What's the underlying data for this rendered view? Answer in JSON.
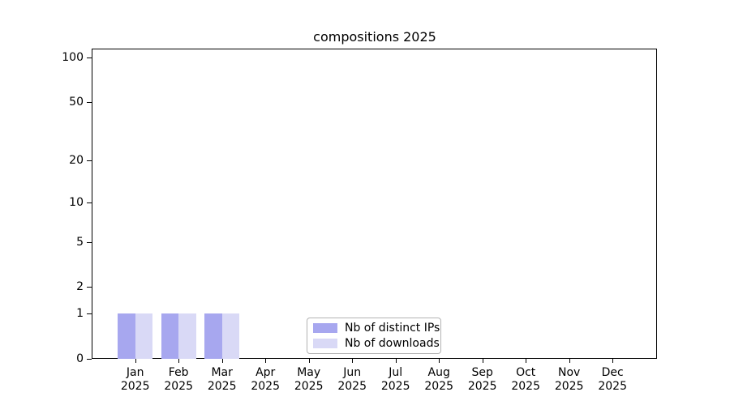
{
  "chart_data": {
    "type": "bar",
    "title": "compositions 2025",
    "categories": [
      "Jan 2025",
      "Feb 2025",
      "Mar 2025",
      "Apr 2025",
      "May 2025",
      "Jun 2025",
      "Jul 2025",
      "Aug 2025",
      "Sep 2025",
      "Oct 2025",
      "Nov 2025",
      "Dec 2025"
    ],
    "series": [
      {
        "name": "Nb of distinct IPs",
        "color": "#a7a7ef",
        "values": [
          1,
          1,
          1,
          0,
          0,
          0,
          0,
          0,
          0,
          0,
          0,
          0
        ]
      },
      {
        "name": "Nb of downloads",
        "color": "#d9d9f6",
        "values": [
          1,
          1,
          1,
          0,
          0,
          0,
          0,
          0,
          0,
          0,
          0,
          0
        ]
      }
    ],
    "xlabel": "",
    "ylabel": "",
    "yscale": "log1p",
    "ylim": [
      0,
      115
    ],
    "ytick_labels": [
      100,
      50,
      20,
      10,
      5,
      2,
      1,
      0
    ],
    "major_grid_values": [
      1,
      10,
      100
    ],
    "minor_grid_values": [
      2,
      3,
      4,
      5,
      6,
      7,
      8,
      9,
      20,
      30,
      40,
      50,
      60,
      70,
      80,
      90
    ],
    "grid": "horizontal",
    "legend_position": "lower center",
    "colors": {
      "major_grid": "#b4b4b4",
      "minor_grid": "#e8e8e8",
      "axis": "#000000",
      "background": "#ffffff"
    }
  }
}
